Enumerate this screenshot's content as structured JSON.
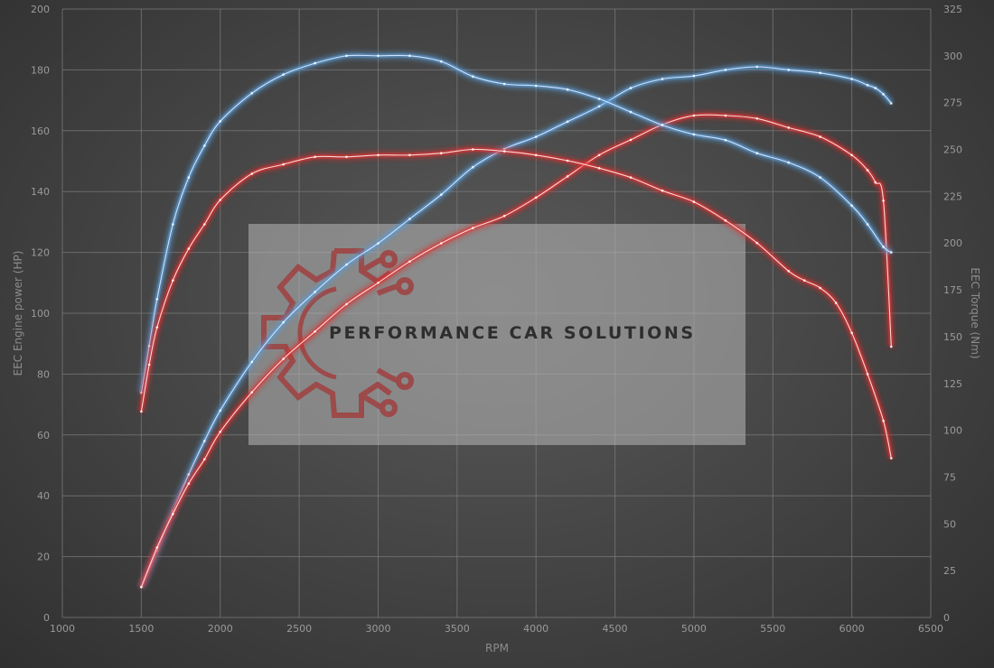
{
  "chart_data": {
    "type": "line",
    "xlabel": "RPM",
    "ylabel_left": "EEC Engine power (HP)",
    "ylabel_right": "EEC Torque (Nm)",
    "xlim": [
      1000,
      6500
    ],
    "ylim_left": [
      0,
      200
    ],
    "ylim_right": [
      0,
      325
    ],
    "x_ticks": [
      1000,
      1500,
      2000,
      2500,
      3000,
      3500,
      4000,
      4500,
      5000,
      5500,
      6000,
      6500
    ],
    "y_left_ticks": [
      0,
      20,
      40,
      60,
      80,
      100,
      120,
      140,
      160,
      180,
      200
    ],
    "y_right_ticks": [
      0,
      25,
      50,
      75,
      100,
      125,
      150,
      175,
      200,
      225,
      250,
      275,
      300,
      325
    ],
    "grid": true,
    "colors": {
      "power_modified": "#5b9bd5",
      "power_original": "#e03030",
      "torque_modified": "#5b9bd5",
      "torque_original": "#e03030"
    },
    "series": [
      {
        "axis": "left",
        "color": "#5b9bd5",
        "x": [
          1500,
          1600,
          1700,
          1800,
          1900,
          2000,
          2200,
          2400,
          2600,
          2800,
          3000,
          3200,
          3400,
          3600,
          3800,
          4000,
          4200,
          4400,
          4600,
          4800,
          5000,
          5200,
          5400,
          5600,
          5800,
          6000,
          6100,
          6150,
          6200,
          6250
        ],
        "values": [
          10,
          22,
          35,
          47,
          58,
          68,
          84,
          97,
          107,
          116,
          123,
          131,
          139,
          148,
          154,
          158,
          163,
          168,
          174,
          177,
          178,
          180,
          181,
          180,
          179,
          177,
          175,
          174,
          172,
          169
        ]
      },
      {
        "axis": "left",
        "color": "#e03030",
        "x": [
          1500,
          1600,
          1700,
          1800,
          1900,
          2000,
          2200,
          2400,
          2600,
          2800,
          3000,
          3200,
          3400,
          3600,
          3800,
          4000,
          4200,
          4400,
          4600,
          4800,
          5000,
          5200,
          5400,
          5600,
          5800,
          6000,
          6100,
          6150,
          6200,
          6250
        ],
        "values": [
          10,
          23,
          34,
          44,
          52,
          61,
          74,
          85,
          94,
          103,
          110,
          117,
          123,
          128,
          132,
          138,
          145,
          152,
          157,
          162,
          165,
          165,
          164,
          161,
          158,
          152,
          147,
          143,
          137,
          89
        ]
      },
      {
        "axis": "right",
        "color": "#5b9bd5",
        "x": [
          1500,
          1550,
          1600,
          1700,
          1800,
          1900,
          2000,
          2200,
          2400,
          2600,
          2800,
          3000,
          3200,
          3400,
          3600,
          3800,
          4000,
          4200,
          4400,
          4600,
          4800,
          5000,
          5200,
          5400,
          5600,
          5800,
          6000,
          6100,
          6200,
          6250
        ],
        "values": [
          120,
          145,
          170,
          210,
          235,
          252,
          265,
          280,
          290,
          296,
          300,
          300,
          300,
          297,
          289,
          285,
          284,
          282,
          277,
          270,
          263,
          258,
          255,
          248,
          243,
          235,
          220,
          210,
          198,
          195
        ]
      },
      {
        "axis": "right",
        "color": "#e03030",
        "x": [
          1500,
          1550,
          1600,
          1700,
          1800,
          1900,
          2000,
          2200,
          2400,
          2600,
          2800,
          3000,
          3200,
          3400,
          3600,
          3800,
          4000,
          4200,
          4400,
          4600,
          4800,
          5000,
          5200,
          5400,
          5600,
          5700,
          5800,
          5900,
          6000,
          6100,
          6200,
          6250
        ],
        "values": [
          110,
          135,
          155,
          180,
          197,
          210,
          223,
          237,
          242,
          246,
          246,
          247,
          247,
          248,
          250,
          249,
          247,
          244,
          240,
          235,
          228,
          222,
          212,
          200,
          185,
          180,
          176,
          168,
          152,
          130,
          105,
          85
        ]
      }
    ],
    "watermark_text": "PERFORMANCE CAR SOLUTIONS"
  }
}
